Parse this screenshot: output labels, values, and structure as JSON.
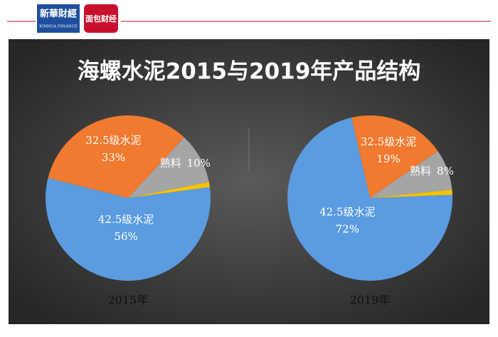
{
  "header": {
    "logo1": "新華財經",
    "logo1_sub": "XINHUA FINANCE",
    "logo2": "面包财经"
  },
  "title": "海螺水泥2015与2019年产品结构",
  "chart_data": [
    {
      "type": "pie",
      "label": "2015年",
      "start_angle": -76,
      "categories": [
        "32.5级水泥",
        "熟料",
        null,
        "42.5级水泥"
      ],
      "values": [
        33,
        10,
        1,
        56
      ],
      "value_labels": [
        "33%",
        "10%",
        null,
        "56%"
      ],
      "colors": [
        "#f07a2f",
        "#a5a5a5",
        "#f5c400",
        "#5b9be0"
      ]
    },
    {
      "type": "pie",
      "label": "2019年",
      "start_angle": -13,
      "categories": [
        "32.5级水泥",
        "熟料",
        null,
        "42.5级水泥"
      ],
      "values": [
        19,
        8,
        1,
        72
      ],
      "value_labels": [
        "19%",
        "8%",
        null,
        "72%"
      ],
      "colors": [
        "#f07a2f",
        "#a5a5a5",
        "#f5c400",
        "#5b9be0"
      ]
    }
  ]
}
